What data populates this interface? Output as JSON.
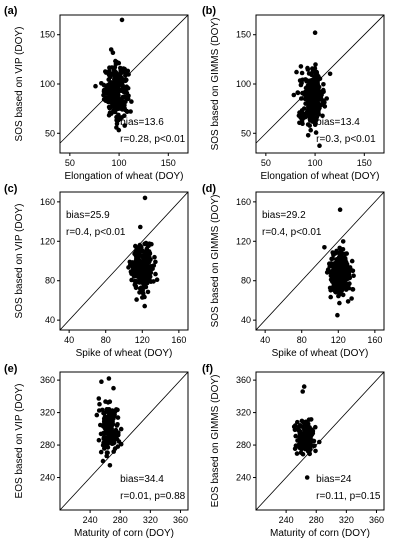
{
  "chart_data": [
    {
      "type": "scatter",
      "panel": "(a)",
      "xlabel": "Elongation of wheat (DOY)",
      "ylabel": "SOS based on VIP (DOY)",
      "xlim": [
        40,
        170
      ],
      "ylim": [
        30,
        170
      ],
      "xticks": [
        50,
        100,
        150
      ],
      "yticks": [
        50,
        100,
        150
      ],
      "x_center": 97,
      "x_spread": 6,
      "y_center": 93,
      "y_spread": 13,
      "n_points": 260,
      "outliers": [
        [
          103,
          165
        ],
        [
          92,
          135
        ]
      ],
      "reference_line": "1:1",
      "annotations": [
        "bias=13.6",
        "r=0.28, p<0.01"
      ],
      "annotation_position": "bottom-right"
    },
    {
      "type": "scatter",
      "panel": "(b)",
      "xlabel": "Elongation of wheat (DOY)",
      "ylabel": "SOS based on GIMMS (DOY)",
      "xlim": [
        40,
        170
      ],
      "ylim": [
        30,
        170
      ],
      "xticks": [
        50,
        100,
        150
      ],
      "yticks": [
        50,
        100,
        150
      ],
      "x_center": 97,
      "x_spread": 6,
      "y_center": 87,
      "y_spread": 14,
      "n_points": 260,
      "outliers": [
        [
          100,
          152
        ],
        [
          93,
          48
        ]
      ],
      "reference_line": "1:1",
      "annotations": [
        "bias=13.4",
        "r=0.3, p<0.01"
      ],
      "annotation_position": "bottom-right"
    },
    {
      "type": "scatter",
      "panel": "(c)",
      "xlabel": "Spike of wheat (DOY)",
      "ylabel": "SOS based on VIP (DOY)",
      "xlim": [
        30,
        170
      ],
      "ylim": [
        30,
        170
      ],
      "xticks": [
        40,
        80,
        120,
        160
      ],
      "yticks": [
        40,
        80,
        120,
        160
      ],
      "x_center": 121,
      "x_spread": 6,
      "y_center": 93,
      "y_spread": 12,
      "n_points": 260,
      "outliers": [
        [
          120,
          172
        ],
        [
          123,
          164
        ],
        [
          120,
          63
        ]
      ],
      "reference_line": "1:1",
      "annotations": [
        "bias=25.9",
        "r=0.4, p<0.01"
      ],
      "annotation_position": "top-left"
    },
    {
      "type": "scatter",
      "panel": "(d)",
      "xlabel": "Spike of wheat (DOY)",
      "ylabel": "SOS based on GIMMS (DOY)",
      "xlim": [
        30,
        170
      ],
      "ylim": [
        30,
        170
      ],
      "xticks": [
        40,
        80,
        120,
        160
      ],
      "yticks": [
        40,
        80,
        120,
        160
      ],
      "x_center": 122,
      "x_spread": 6,
      "y_center": 88,
      "y_spread": 12,
      "n_points": 260,
      "outliers": [
        [
          122,
          152
        ],
        [
          119,
          45
        ]
      ],
      "reference_line": "1:1",
      "annotations": [
        "bias=29.2",
        "r=0.4, p<0.01"
      ],
      "annotation_position": "top-left"
    },
    {
      "type": "scatter",
      "panel": "(e)",
      "xlabel": "Maturity of corn (DOY)",
      "ylabel": "EOS based on VIP (DOY)",
      "xlim": [
        200,
        370
      ],
      "ylim": [
        200,
        370
      ],
      "xticks": [
        240,
        280,
        320,
        360
      ],
      "yticks": [
        240,
        280,
        320,
        360
      ],
      "x_center": 265,
      "x_spread": 6,
      "y_center": 300,
      "y_spread": 16,
      "n_points": 150,
      "outliers": [
        [
          265,
          362
        ],
        [
          255,
          358
        ],
        [
          271,
          350
        ]
      ],
      "reference_line": "1:1",
      "annotations": [
        "bias=34.4",
        "r=0.01, p=0.88"
      ],
      "annotation_position": "bottom-right"
    },
    {
      "type": "scatter",
      "panel": "(f)",
      "xlabel": "Maturity of corn (DOY)",
      "ylabel": "EOS based on GIMMS (DOY)",
      "xlim": [
        200,
        370
      ],
      "ylim": [
        200,
        370
      ],
      "xticks": [
        240,
        280,
        320,
        360
      ],
      "yticks": [
        240,
        280,
        320,
        360
      ],
      "x_center": 265,
      "x_spread": 6,
      "y_center": 290,
      "y_spread": 11,
      "n_points": 150,
      "outliers": [
        [
          264,
          352
        ],
        [
          268,
          240
        ],
        [
          262,
          346
        ]
      ],
      "reference_line": "1:1",
      "annotations": [
        "bias=24",
        "r=0.11, p=0.15"
      ],
      "annotation_position": "bottom-right"
    }
  ]
}
